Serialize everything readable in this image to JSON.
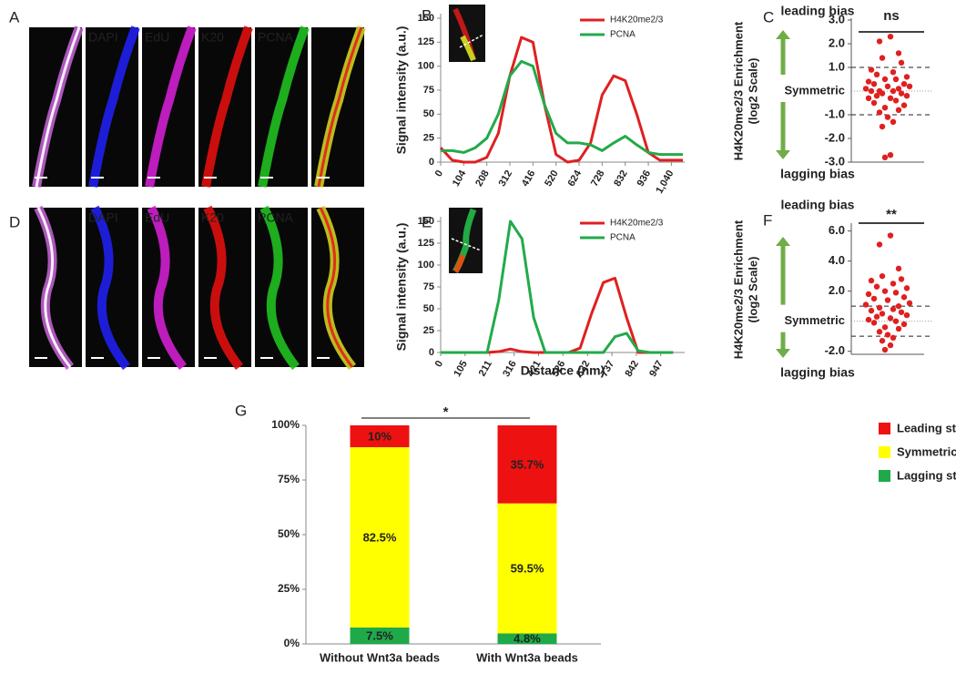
{
  "panels": [
    "A",
    "B",
    "C",
    "D",
    "E",
    "F",
    "G"
  ],
  "channels": [
    [
      "DAPI",
      "EdU",
      "K20",
      "PCNA"
    ],
    [
      "DAPI",
      "EdU",
      "K20",
      "PCNA"
    ]
  ],
  "chart_data": [
    {
      "type": "line",
      "ylabel": "Signal intensity (a.u.)",
      "legend": "top-right",
      "x": [
        0,
        52,
        104,
        156,
        208,
        260,
        312,
        364,
        416,
        468,
        520,
        572,
        624,
        676,
        728,
        780,
        832,
        884,
        936,
        988,
        1040,
        1092
      ],
      "xlim": [
        0,
        1100
      ],
      "xticks": [
        0,
        104,
        208,
        312,
        416,
        520,
        624,
        728,
        832,
        936,
        {
          "value": 1040,
          "label": "1,040"
        }
      ],
      "ylim": [
        0,
        150
      ],
      "yticks": [
        0,
        25,
        50,
        75,
        100,
        125,
        150
      ],
      "series": [
        {
          "name": "H4K20me2/3",
          "color": "#e02020",
          "values": [
            15,
            2,
            0,
            0,
            5,
            30,
            90,
            130,
            125,
            60,
            8,
            0,
            2,
            20,
            70,
            90,
            85,
            50,
            10,
            2,
            2,
            2
          ]
        },
        {
          "name": "PCNA",
          "color": "#22aa4a",
          "values": [
            12,
            12,
            10,
            15,
            25,
            50,
            90,
            105,
            100,
            60,
            30,
            20,
            20,
            18,
            12,
            20,
            27,
            18,
            10,
            8,
            8,
            8
          ]
        }
      ]
    },
    {
      "type": "scatter",
      "ylabel": [
        "H4K20me2/3 Enrichment",
        "(log2 Scale)"
      ],
      "top_label": "leading bias",
      "bottom_label": "lagging bias",
      "center_label": "Symmetric",
      "center_value": 0,
      "significance": "ns",
      "thresholds": [
        1,
        -1
      ],
      "color": "#e02020",
      "ylim": [
        -3,
        3
      ],
      "yticks": [
        {
          "value": 3,
          "label": "3.0"
        },
        {
          "value": 2,
          "label": "2.0"
        },
        {
          "value": 1,
          "label": "1.0"
        },
        {
          "value": -1,
          "label": "-1.0"
        },
        {
          "value": -2,
          "label": "-2.0"
        },
        {
          "value": -3,
          "label": "-3.0"
        }
      ],
      "x": [
        0.1,
        -0.3,
        0.4,
        -0.2,
        0.5,
        -0.6,
        0.2,
        -0.4,
        0.7,
        -0.1,
        0.3,
        -0.7,
        0.6,
        -0.5,
        0.0,
        0.8,
        -0.8,
        0.4,
        -0.3,
        0.2,
        -0.6,
        0.5,
        -0.2,
        0.7,
        -0.4,
        0.1,
        -0.7,
        0.3,
        -0.5,
        0.6,
        -0.1,
        0.4,
        -0.3,
        0.0,
        0.2,
        -0.2,
        0.1,
        -0.1
      ],
      "values": [
        2.3,
        2.1,
        1.6,
        1.4,
        1.2,
        0.9,
        0.8,
        0.7,
        0.6,
        0.5,
        0.5,
        0.4,
        0.3,
        0.3,
        0.2,
        0.2,
        0.1,
        0.1,
        0.0,
        0.0,
        0.0,
        -0.1,
        -0.1,
        -0.2,
        -0.2,
        -0.3,
        -0.3,
        -0.4,
        -0.5,
        -0.6,
        -0.7,
        -0.8,
        -0.9,
        -1.1,
        -1.3,
        -1.5,
        -2.7,
        -2.8
      ]
    },
    {
      "type": "line",
      "ylabel": "Signal intensity (a.u.)",
      "xlabel": "Distance (nm)",
      "legend": "top-right",
      "x": [
        0,
        50,
        100,
        150,
        200,
        250,
        300,
        350,
        400,
        450,
        500,
        550,
        600,
        650,
        700,
        750,
        800,
        850,
        900,
        950,
        1000
      ],
      "xlim": [
        0,
        1050
      ],
      "xticks": [
        0,
        105,
        211,
        316,
        421,
        526,
        632,
        737,
        842,
        947
      ],
      "ylim": [
        0,
        150
      ],
      "yticks": [
        0,
        25,
        50,
        75,
        100,
        125,
        150
      ],
      "series": [
        {
          "name": "H4K20me2/3",
          "color": "#e02020",
          "values": [
            0,
            0,
            0,
            0,
            0,
            1,
            4,
            1,
            0,
            0,
            0,
            0,
            5,
            45,
            80,
            85,
            40,
            0,
            0,
            0,
            0
          ]
        },
        {
          "name": "PCNA",
          "color": "#22aa4a",
          "values": [
            0,
            0,
            0,
            0,
            0,
            60,
            150,
            130,
            40,
            0,
            0,
            0,
            0,
            0,
            0,
            18,
            22,
            2,
            0,
            0,
            0
          ]
        }
      ]
    },
    {
      "type": "scatter",
      "ylabel": [
        "H4K20me2/3 Enrichment",
        "(log2 Scale)"
      ],
      "top_label": "leading bias",
      "bottom_label": "lagging bias",
      "center_label": "Symmetric",
      "center_value": 0,
      "significance": "**",
      "thresholds": [
        1,
        -1
      ],
      "color": "#e02020",
      "ylim": [
        -2.2,
        6.4
      ],
      "yticks": [
        {
          "value": 6,
          "label": "6.0"
        },
        {
          "value": 4,
          "label": "4.0"
        },
        {
          "value": 2,
          "label": "2.0"
        },
        {
          "value": -2,
          "label": "-2.0"
        }
      ],
      "x": [
        0.1,
        -0.3,
        0.4,
        -0.2,
        0.5,
        -0.6,
        0.2,
        -0.4,
        0.7,
        -0.1,
        0.3,
        -0.7,
        0.6,
        -0.5,
        0.0,
        0.8,
        -0.8,
        0.4,
        -0.3,
        0.2,
        -0.6,
        0.5,
        -0.2,
        0.7,
        -0.4,
        0.1,
        -0.7,
        0.3,
        -0.5,
        0.6,
        -0.1,
        0.4,
        -0.3,
        0.0,
        0.2,
        -0.2,
        0.1,
        -0.1
      ],
      "values": [
        5.7,
        5.1,
        3.5,
        3.0,
        2.8,
        2.7,
        2.5,
        2.3,
        2.2,
        2.0,
        1.9,
        1.8,
        1.6,
        1.5,
        1.4,
        1.2,
        1.1,
        1.0,
        0.9,
        0.8,
        0.7,
        0.6,
        0.5,
        0.4,
        0.3,
        0.2,
        0.1,
        0.0,
        -0.1,
        -0.2,
        -0.4,
        -0.5,
        -0.7,
        -0.9,
        -1.1,
        -1.3,
        -1.6,
        -1.9
      ]
    },
    {
      "type": "stacked_bar",
      "significance": "*",
      "legend": "right",
      "categories": [
        "Without Wnt3a beads",
        "With Wnt3a beads"
      ],
      "ylim": [
        0,
        100
      ],
      "yticks": [
        {
          "value": 0,
          "label": "0%"
        },
        {
          "value": 25,
          "label": "25%"
        },
        {
          "value": 50,
          "label": "50%"
        },
        {
          "value": 75,
          "label": "75%"
        },
        {
          "value": 100,
          "label": "100%"
        }
      ],
      "series": [
        {
          "name": "Lagging strand enriched",
          "color": "#1faa4a",
          "values": [
            7.5,
            4.8
          ],
          "value_labels": [
            "7.5%",
            "4.8%"
          ]
        },
        {
          "name": "Symmetric",
          "color": "#ffff00",
          "values": [
            82.5,
            59.5
          ],
          "value_labels": [
            "82.5%",
            "59.5%"
          ]
        },
        {
          "name": "Leading strand enriched",
          "color": "#ee1111",
          "values": [
            10,
            35.7
          ],
          "value_labels": [
            "10%",
            "35.7%"
          ]
        }
      ]
    }
  ]
}
